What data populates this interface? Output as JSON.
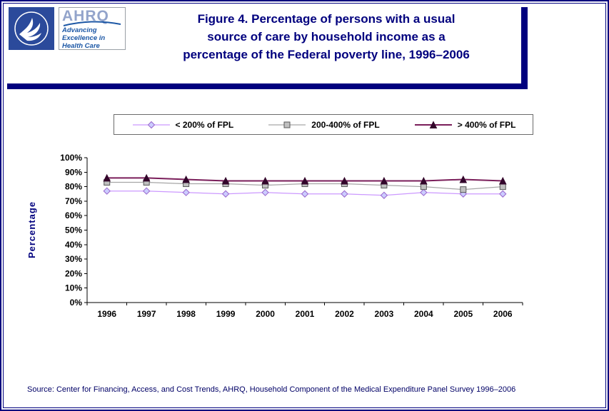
{
  "colors": {
    "navy": "#00007E",
    "source_text": "#000066",
    "legend_border": "#6B6B6B",
    "axis": "#000000",
    "hhs_blue": "#2B4A9B",
    "ahrq_blue": "#1C57A5"
  },
  "header": {
    "ahrq_acronym": "AHRQ",
    "ahrq_tagline": "Advancing\nExcellence in\nHealth Care",
    "title": "Figure 4. Percentage of persons with a usual\nsource of care by household income as a\npercentage of the Federal poverty line, 1996–2006"
  },
  "chart_data": {
    "type": "line",
    "title": "Figure 4. Percentage of persons with a usual source of care by household income as a percentage of the Federal poverty line, 1996–2006",
    "xlabel": "",
    "ylabel": "Percentage",
    "categories": [
      "1996",
      "1997",
      "1998",
      "1999",
      "2000",
      "2001",
      "2002",
      "2003",
      "2004",
      "2005",
      "2006"
    ],
    "ylim": [
      0,
      100
    ],
    "ytick_step": 10,
    "ytick_suffix": "%",
    "grid": false,
    "legend_position": "top",
    "series": [
      {
        "name": "< 200% of FPL",
        "marker": "diamond",
        "marker_size": 4.5,
        "line_color": "#CC99FF",
        "line_width": 1.25,
        "marker_fill": "#CCCCFF",
        "marker_stroke": "#9966CC",
        "values": [
          77,
          77,
          76,
          75,
          76,
          75,
          75,
          74,
          76,
          75,
          75
        ]
      },
      {
        "name": "200-400% of FPL",
        "marker": "square",
        "marker_size": 4,
        "line_color": "#A6A6A6",
        "line_width": 1.25,
        "marker_fill": "#C0C0C0",
        "marker_stroke": "#595959",
        "values": [
          83,
          83,
          82,
          82,
          81,
          82,
          82,
          81,
          80,
          78,
          80
        ]
      },
      {
        "name": "> 400% of FPL",
        "marker": "triangle",
        "marker_size": 4.5,
        "line_color": "#7A1E5A",
        "line_width": 2,
        "marker_fill": "#33062B",
        "marker_stroke": "#33062B",
        "values": [
          86,
          86,
          85,
          84,
          84,
          84,
          84,
          84,
          84,
          85,
          84
        ]
      }
    ]
  },
  "footer": {
    "source": "Source: Center for Financing, Access, and Cost Trends, AHRQ, Household Component of the Medical Expenditure Panel Survey 1996–2006"
  }
}
